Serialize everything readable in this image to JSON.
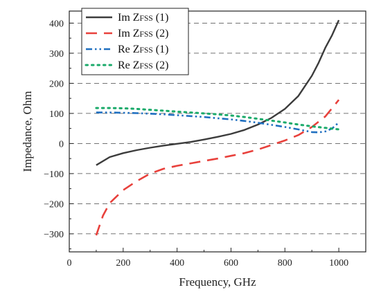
{
  "chart_data": {
    "type": "line",
    "xlabel": "Frequency, GHz",
    "ylabel": "Impedance, Ohm",
    "xlim": [
      0,
      1100
    ],
    "ylim": [
      -360,
      440
    ],
    "xticks": [
      0,
      200,
      400,
      600,
      800,
      1000
    ],
    "yticks": [
      400,
      300,
      200,
      100,
      0,
      -100,
      -200,
      -300
    ],
    "xtick_labels": [
      "0",
      "200",
      "400",
      "600",
      "800",
      "1000"
    ],
    "ytick_labels": [
      "400",
      "300",
      "200",
      "100",
      "0",
      "−100",
      "−200",
      "−300"
    ],
    "grid": "horizontal dashed",
    "legend_position": "top-left",
    "series": [
      {
        "name": "Im ZFSS (1)",
        "legend_main": "Im Z",
        "legend_sub": "FSS",
        "legend_suffix": " (1)",
        "color": "#3c3c3c",
        "style": "solid",
        "x": [
          100,
          150,
          200,
          250,
          300,
          350,
          400,
          450,
          500,
          550,
          600,
          650,
          700,
          750,
          800,
          850,
          900,
          925,
          950,
          975,
          1000
        ],
        "y": [
          -72,
          -45,
          -32,
          -22,
          -14,
          -7,
          -1,
          5,
          13,
          22,
          32,
          45,
          63,
          85,
          115,
          158,
          225,
          268,
          318,
          360,
          410
        ]
      },
      {
        "name": "Im ZFSS (2)",
        "legend_main": "Im Z",
        "legend_sub": "FSS",
        "legend_suffix": " (2)",
        "color": "#e8413c",
        "style": "dashed",
        "x": [
          100,
          125,
          150,
          200,
          250,
          300,
          350,
          400,
          450,
          500,
          550,
          600,
          650,
          700,
          750,
          800,
          850,
          900,
          950,
          1000
        ],
        "y": [
          -305,
          -240,
          -198,
          -155,
          -125,
          -100,
          -84,
          -74,
          -66,
          -58,
          -50,
          -41,
          -32,
          -20,
          -5,
          10,
          28,
          55,
          90,
          145
        ]
      },
      {
        "name": "Re ZFSS (1)",
        "legend_main": "Re Z",
        "legend_sub": "FSS",
        "legend_suffix": " (1)",
        "color": "#1f6fc0",
        "style": "dashdotdot",
        "x": [
          100,
          150,
          200,
          250,
          300,
          350,
          400,
          450,
          500,
          550,
          600,
          650,
          700,
          750,
          800,
          850,
          900,
          925,
          950,
          975,
          1000
        ],
        "y": [
          103,
          103,
          102,
          101,
          99,
          97,
          94,
          91,
          88,
          84,
          80,
          75,
          69,
          62,
          55,
          47,
          38,
          37,
          40,
          50,
          70
        ]
      },
      {
        "name": "Re ZFSS (2)",
        "legend_main": "Re Z",
        "legend_sub": "FSS",
        "legend_suffix": " (2)",
        "color": "#1aaa6a",
        "style": "dotted",
        "x": [
          100,
          150,
          200,
          250,
          300,
          350,
          400,
          450,
          500,
          550,
          600,
          650,
          700,
          750,
          800,
          850,
          900,
          950,
          1000
        ],
        "y": [
          118,
          118,
          117,
          115,
          112,
          109,
          106,
          103,
          100,
          97,
          93,
          88,
          82,
          76,
          70,
          63,
          57,
          52,
          47
        ]
      }
    ]
  }
}
